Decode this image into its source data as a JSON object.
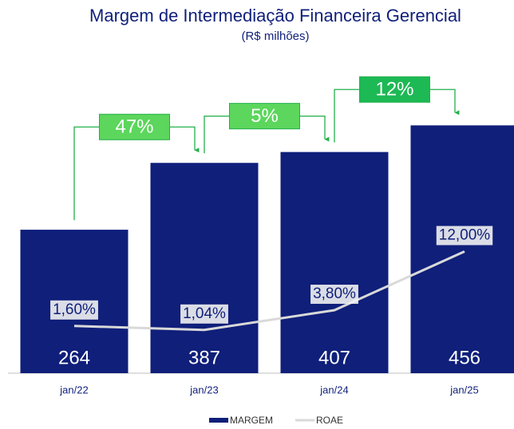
{
  "chart_data": {
    "type": "bar",
    "title": "Margem de Intermediação Financeira Gerencial",
    "subtitle": "(R$ milhões)",
    "categories": [
      "jan/22",
      "jan/23",
      "jan/24",
      "jan/25"
    ],
    "series": [
      {
        "name": "MARGEM",
        "color": "#0f1f7a",
        "values": [
          264,
          387,
          407,
          456
        ]
      },
      {
        "name": "ROAE",
        "color": "#d9d9d9",
        "type": "line",
        "axis": "y2",
        "values": [
          1.6,
          1.04,
          3.8,
          12.0
        ],
        "value_labels": [
          "1,60%",
          "1,04%",
          "3,80%",
          "12,00%"
        ]
      }
    ],
    "annotations": [
      {
        "text": "47%",
        "color": "#5cd65c"
      },
      {
        "text": "5%",
        "color": "#5cd65c"
      },
      {
        "text": "12%",
        "color": "#1db954"
      }
    ],
    "ylim": [
      0,
      540
    ],
    "y2lim": [
      -5,
      36
    ],
    "legend": "bottom"
  }
}
